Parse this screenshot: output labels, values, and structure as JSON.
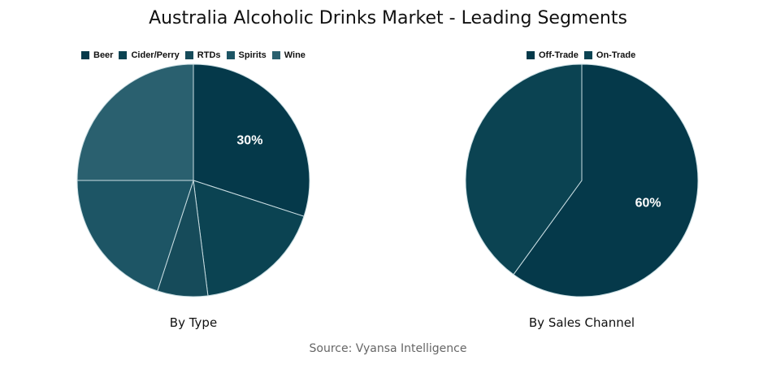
{
  "title": "Australia Alcoholic Drinks Market - Leading Segments",
  "source": "Source: Vyansa Intelligence",
  "chart_data": [
    {
      "type": "pie",
      "title": "By Type",
      "categories": [
        "Beer",
        "Cider/Perry",
        "RTDs",
        "Spirits",
        "Wine"
      ],
      "values": [
        30,
        18,
        7,
        20,
        25
      ],
      "colors": [
        "#05394a",
        "#0b4352",
        "#164b5a",
        "#1d5565",
        "#2a606f"
      ],
      "data_labels": [
        "30%",
        "",
        "",
        "",
        ""
      ],
      "legend_position": "top"
    },
    {
      "type": "pie",
      "title": "By Sales Channel",
      "categories": [
        "Off-Trade",
        "On-Trade"
      ],
      "values": [
        60,
        40
      ],
      "colors": [
        "#05394a",
        "#0b4352"
      ],
      "data_labels": [
        "60%",
        ""
      ],
      "legend_position": "top"
    }
  ]
}
